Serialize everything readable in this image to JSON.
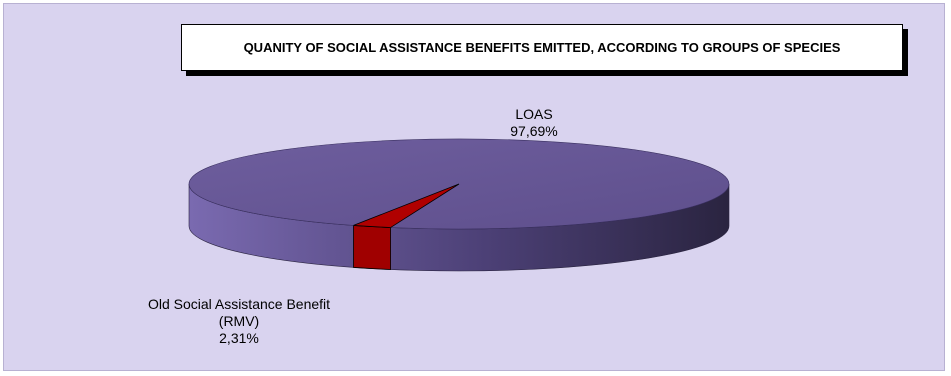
{
  "chart_data": {
    "type": "pie",
    "title": "QUANITY OF SOCIAL ASSISTANCE BENEFITS EMITTED, ACCORDING TO GROUPS OF SPECIES",
    "slices": [
      {
        "label": "LOAS",
        "value": 97.69,
        "value_text": "97,69%",
        "color": "#6a5a9a"
      },
      {
        "label": "Old Social Assistance Benefit (RMV)",
        "value": 2.31,
        "value_text": "2,31%",
        "color": "#b00000"
      }
    ],
    "legend": "none",
    "style": "3d",
    "background_color": "#d9d3ef"
  }
}
